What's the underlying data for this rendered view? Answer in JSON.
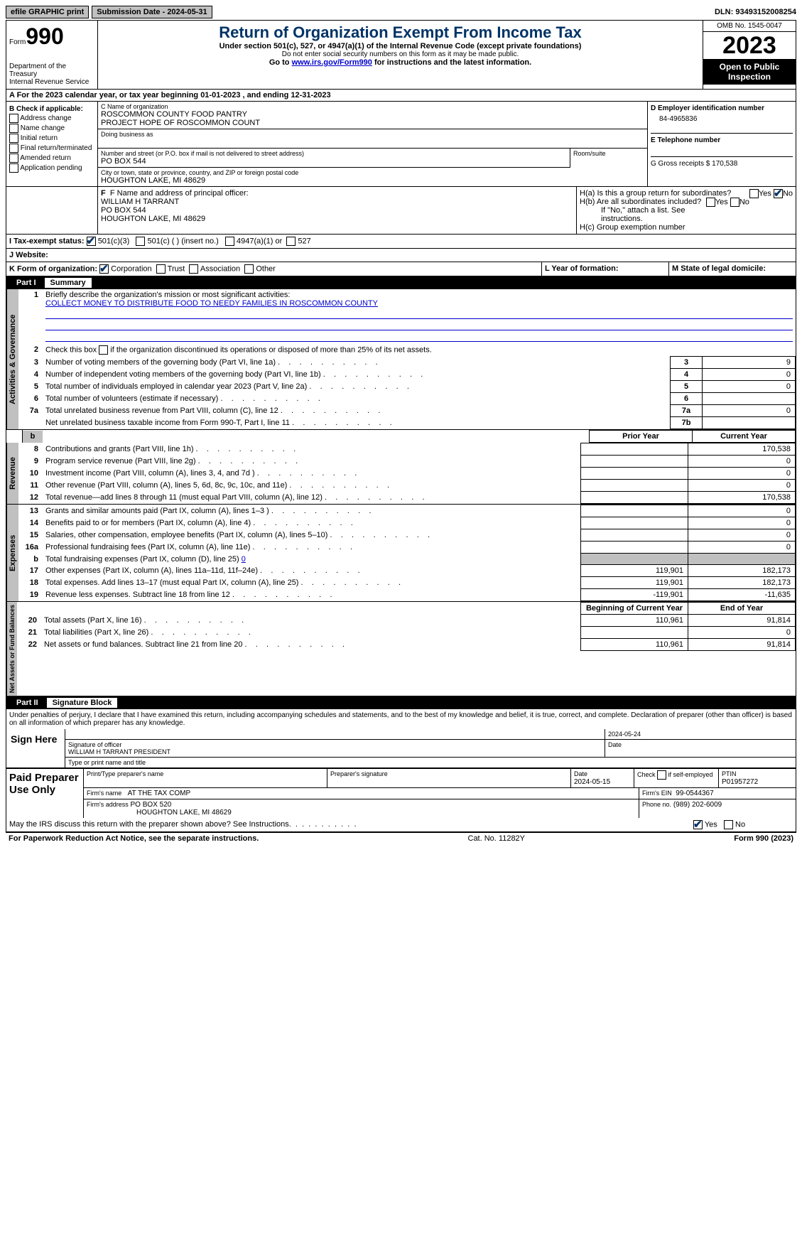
{
  "topbar": {
    "efile": "efile GRAPHIC print",
    "submission_label": "Submission Date - 2024-05-31",
    "dln_label": "DLN: 93493152008254"
  },
  "header": {
    "form_prefix": "Form",
    "form_number": "990",
    "dept": "Department of the Treasury",
    "irs": "Internal Revenue Service",
    "title": "Return of Organization Exempt From Income Tax",
    "subtitle": "Under section 501(c), 527, or 4947(a)(1) of the Internal Revenue Code (except private foundations)",
    "note1": "Do not enter social security numbers on this form as it may be made public.",
    "note2_pre": "Go to ",
    "note2_link": "www.irs.gov/Form990",
    "note2_post": " for instructions and the latest information.",
    "omb": "OMB No. 1545-0047",
    "year": "2023",
    "open": "Open to Public Inspection"
  },
  "line_a": "A  For the 2023 calendar year, or tax year beginning 01-01-2023   , and ending 12-31-2023",
  "section_b": {
    "label": "B Check if applicable:",
    "items": [
      "Address change",
      "Name change",
      "Initial return",
      "Final return/terminated",
      "Amended return",
      "Application pending"
    ]
  },
  "section_c": {
    "name_label": "C Name of organization",
    "name1": "ROSCOMMON COUNTY FOOD PANTRY",
    "name2": "PROJECT HOPE OF ROSCOMMON COUNT",
    "dba_label": "Doing business as",
    "street_label": "Number and street (or P.O. box if mail is not delivered to street address)",
    "street": "PO BOX 544",
    "room_label": "Room/suite",
    "city_label": "City or town, state or province, country, and ZIP or foreign postal code",
    "city": "HOUGHTON LAKE, MI  48629"
  },
  "section_d": {
    "ein_label": "D Employer identification number",
    "ein": "84-4965836",
    "phone_label": "E Telephone number",
    "gross_label": "G Gross receipts $ 170,538"
  },
  "section_f": {
    "label": "F  Name and address of principal officer:",
    "name": "WILLIAM H TARRANT",
    "street": "PO BOX 544",
    "city": "HOUGHTON LAKE, MI  48629"
  },
  "section_h": {
    "ha": "H(a)  Is this a group return for subordinates?",
    "hb": "H(b)  Are all subordinates included?",
    "hb_note": "If \"No,\" attach a list. See instructions.",
    "hc": "H(c)  Group exemption number",
    "yes": "Yes",
    "no": "No"
  },
  "section_i": {
    "label": "I   Tax-exempt status:",
    "opts": [
      "501(c)(3)",
      "501(c) (  ) (insert no.)",
      "4947(a)(1) or",
      "527"
    ]
  },
  "section_j": {
    "label": "J   Website:"
  },
  "section_k": {
    "label": "K Form of organization:",
    "opts": [
      "Corporation",
      "Trust",
      "Association",
      "Other"
    ]
  },
  "section_l": {
    "label": "L Year of formation:"
  },
  "section_m": {
    "label": "M State of legal domicile:"
  },
  "part1": {
    "num": "Part I",
    "title": "Summary",
    "tabs": [
      "Activities & Governance",
      "Revenue",
      "Expenses",
      "Net Assets or Fund Balances"
    ],
    "line1_label": "Briefly describe the organization's mission or most significant activities:",
    "line1_val": "COLLECT MONEY TO DISTRIBUTE FOOD TO NEEDY FAMILIES IN ROSCOMMON COUNTY",
    "line2": "Check this box       if the organization discontinued its operations or disposed of more than 25% of its net assets.",
    "gov_rows": [
      {
        "n": "3",
        "t": "Number of voting members of the governing body (Part VI, line 1a)",
        "box": "3",
        "v": "9"
      },
      {
        "n": "4",
        "t": "Number of independent voting members of the governing body (Part VI, line 1b)",
        "box": "4",
        "v": "0"
      },
      {
        "n": "5",
        "t": "Total number of individuals employed in calendar year 2023 (Part V, line 2a)",
        "box": "5",
        "v": "0"
      },
      {
        "n": "6",
        "t": "Total number of volunteers (estimate if necessary)",
        "box": "6",
        "v": ""
      },
      {
        "n": "7a",
        "t": "Total unrelated business revenue from Part VIII, column (C), line 12",
        "box": "7a",
        "v": "0"
      },
      {
        "n": "",
        "t": "Net unrelated business taxable income from Form 990-T, Part I, line 11",
        "box": "7b",
        "v": ""
      }
    ],
    "col_headers": {
      "b": "b",
      "prior": "Prior Year",
      "current": "Current Year"
    },
    "rev_rows": [
      {
        "n": "8",
        "t": "Contributions and grants (Part VIII, line 1h)",
        "p": "",
        "c": "170,538"
      },
      {
        "n": "9",
        "t": "Program service revenue (Part VIII, line 2g)",
        "p": "",
        "c": "0"
      },
      {
        "n": "10",
        "t": "Investment income (Part VIII, column (A), lines 3, 4, and 7d )",
        "p": "",
        "c": "0"
      },
      {
        "n": "11",
        "t": "Other revenue (Part VIII, column (A), lines 5, 6d, 8c, 9c, 10c, and 11e)",
        "p": "",
        "c": "0"
      },
      {
        "n": "12",
        "t": "Total revenue—add lines 8 through 11 (must equal Part VIII, column (A), line 12)",
        "p": "",
        "c": "170,538"
      }
    ],
    "exp_rows": [
      {
        "n": "13",
        "t": "Grants and similar amounts paid (Part IX, column (A), lines 1–3 )",
        "p": "",
        "c": "0"
      },
      {
        "n": "14",
        "t": "Benefits paid to or for members (Part IX, column (A), line 4)",
        "p": "",
        "c": "0"
      },
      {
        "n": "15",
        "t": "Salaries, other compensation, employee benefits (Part IX, column (A), lines 5–10)",
        "p": "",
        "c": "0"
      },
      {
        "n": "16a",
        "t": "Professional fundraising fees (Part IX, column (A), line 11e)",
        "p": "",
        "c": "0"
      }
    ],
    "exp_b": {
      "n": "b",
      "t": "Total fundraising expenses (Part IX, column (D), line 25)",
      "v": "0"
    },
    "exp_rows2": [
      {
        "n": "17",
        "t": "Other expenses (Part IX, column (A), lines 11a–11d, 11f–24e)",
        "p": "119,901",
        "c": "182,173"
      },
      {
        "n": "18",
        "t": "Total expenses. Add lines 13–17 (must equal Part IX, column (A), line 25)",
        "p": "119,901",
        "c": "182,173"
      },
      {
        "n": "19",
        "t": "Revenue less expenses. Subtract line 18 from line 12",
        "p": "-119,901",
        "c": "-11,635"
      }
    ],
    "net_headers": {
      "begin": "Beginning of Current Year",
      "end": "End of Year"
    },
    "net_rows": [
      {
        "n": "20",
        "t": "Total assets (Part X, line 16)",
        "p": "110,961",
        "c": "91,814"
      },
      {
        "n": "21",
        "t": "Total liabilities (Part X, line 26)",
        "p": "",
        "c": "0"
      },
      {
        "n": "22",
        "t": "Net assets or fund balances. Subtract line 21 from line 20",
        "p": "110,961",
        "c": "91,814"
      }
    ]
  },
  "part2": {
    "num": "Part II",
    "title": "Signature Block",
    "perjury": "Under penalties of perjury, I declare that I have examined this return, including accompanying schedules and statements, and to the best of my knowledge and belief, it is true, correct, and complete. Declaration of preparer (other than officer) is based on all information of which preparer has any knowledge.",
    "sign_here": "Sign Here",
    "sig_officer_label": "Signature of officer",
    "sig_officer": "WILLIAM H TARRANT  PRESIDENT",
    "sig_type_label": "Type or print name and title",
    "sig_date_label": "Date",
    "sig_date": "2024-05-24",
    "paid": "Paid Preparer Use Only",
    "prep_name_label": "Print/Type preparer's name",
    "prep_sig_label": "Preparer's signature",
    "prep_date_label": "Date",
    "prep_date": "2024-05-15",
    "prep_check_label": "Check         if self-employed",
    "ptin_label": "PTIN",
    "ptin": "P01957272",
    "firm_name_label": "Firm's name",
    "firm_name": "AT THE TAX COMP",
    "firm_ein_label": "Firm's EIN",
    "firm_ein": "99-0544367",
    "firm_addr_label": "Firm's address",
    "firm_addr1": "PO BOX 520",
    "firm_addr2": "HOUGHTON LAKE, MI  48629",
    "firm_phone_label": "Phone no.",
    "firm_phone": "(989) 202-6009",
    "discuss": "May the IRS discuss this return with the preparer shown above? See Instructions.",
    "yes": "Yes",
    "no": "No"
  },
  "footer": {
    "left": "For Paperwork Reduction Act Notice, see the separate instructions.",
    "mid": "Cat. No. 11282Y",
    "right": "Form 990 (2023)"
  }
}
